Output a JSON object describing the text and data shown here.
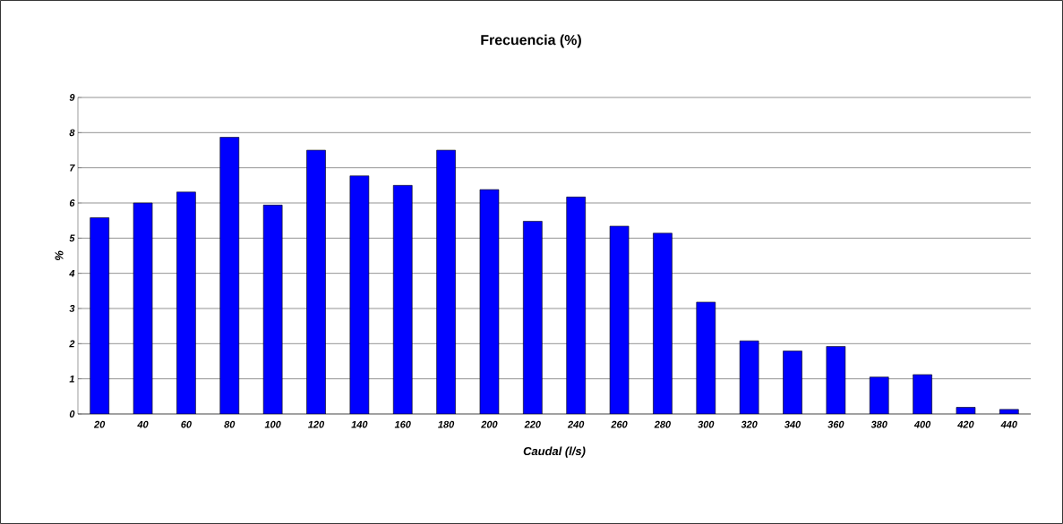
{
  "chart_data": {
    "type": "bar",
    "title": "Frecuencia (%)",
    "xlabel": "Caudal (l/s)",
    "ylabel": "%",
    "categories": [
      "20",
      "40",
      "60",
      "80",
      "100",
      "120",
      "140",
      "160",
      "180",
      "200",
      "220",
      "240",
      "260",
      "280",
      "300",
      "320",
      "340",
      "360",
      "380",
      "400",
      "420",
      "440"
    ],
    "values": [
      5.58,
      6.0,
      6.31,
      7.87,
      5.94,
      7.5,
      6.77,
      6.5,
      7.5,
      6.38,
      5.48,
      6.17,
      5.34,
      5.14,
      3.18,
      2.08,
      1.79,
      1.92,
      1.05,
      1.12,
      0.19,
      0.13
    ],
    "color": "#0000ff",
    "ylim": [
      0,
      9
    ],
    "yticks": [
      0,
      1,
      2,
      3,
      4,
      5,
      6,
      7,
      8,
      9
    ],
    "grid": "y"
  }
}
